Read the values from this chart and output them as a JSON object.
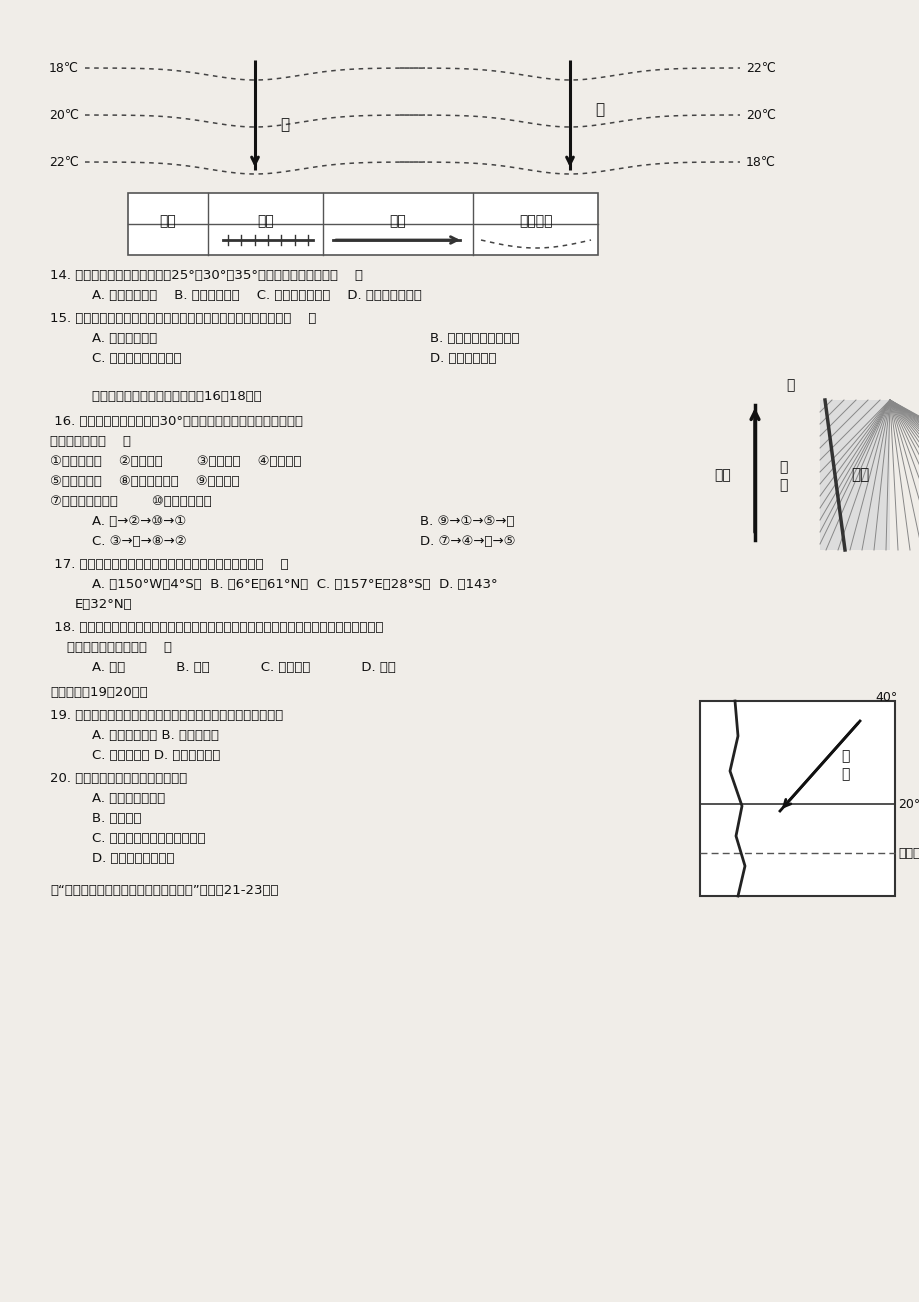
{
  "bg_color": "#f0ede8",
  "page_bg": "#f0ede8",
  "q14": "14. 如果图中三条纬线分别表示25°、30°、35°，下列叙述正确的是（    ）",
  "q14_A": "A. 甲位于南半球",
  "q14_B": "B. 乙位于南半球",
  "q14_C": "C. 甲图洋流为暖流",
  "q14_D": "D. 乙图洋流为寒流",
  "q15": "15. 如果甲、乙两图都位于太平洋，判断甲、乙两图的洋流名称（    ）",
  "q15_A": "A. 甲为秘鲁寒流",
  "q15_B": "B. 乙为西澳大利亚寒流",
  "q15_C": "C. 甲为加利福尼亚寒流",
  "q15_D": "D. 乙为巴西暖流",
  "intro16_18": "    读某沿海地区洋流示意图，回等16～18题。",
  "q16a": " 16. 若甲洋流所处的纬度是30°，下列洋流中能与甲洋流构成完整",
  "q16b": "大洋环流的是（    ）",
  "q16_list1": "①本格拉寒流    ②千岛寒流        ③秘鲁寒流    ④西风漂流",
  "q16_list2": "⑤南赤道暖流    ⑧阿拉斯加暖流    ⑨巴西暖流",
  "q16_list3": "⑦东澳大利亚暖流        ⑩北太平洋暖流",
  "q16_A": "A. 甲→②→⑩→①",
  "q16_B": "B. ⑨→①→⑤→甲",
  "q16_C": "C. ③→甲→⑧→②",
  "q16_D": "D. ⑦→④→甲→⑤",
  "q17": " 17. 若甲洋流的性质属于暖流，则甲洋流的地理位置在（    ）",
  "q17_opts": "    A. （150°W；4°S）  B. （6°E；61°N）  C. （157°E；28°S）  D. （143°",
  "q17_cont": "E；32°N）",
  "q18a": " 18. 若图中的海洋是太平洋，当甲洋流远离海岁且沿岁的水温异常升高时，受其影响可能出",
  "q18b": "    现严重旱灾的地区是（    ）",
  "q18_A": "A. 智利",
  "q18_B": "B. 美国",
  "q18_C": "C. 澳大利亚",
  "q18_D": "D. 英国",
  "intro19_20": "读图，完戕19～20题。",
  "q19a": "19. 在图中洋流处放一漂流瓶，最有可能先发现漂流瓶的地区是",
  "q19_A": "A. 南美洲西海岸 B. 亚洲东海岸",
  "q19_C": "C. 非洲西海岸 D. 北美洲西海岸",
  "q20a": "20. 关于图中洋流的叙述，正确的是",
  "q20_A": "A. 增加了雾的发生",
  "q20_B": "B. 为密度流",
  "q20_C": "C. 加剧了沿屙地区的湿热程度",
  "q20_D": "D. 形成了世界大渔场",
  "intro21_23": "读“北印度洋水平及垂直方向洋流示意图”，完戕21-23题。"
}
